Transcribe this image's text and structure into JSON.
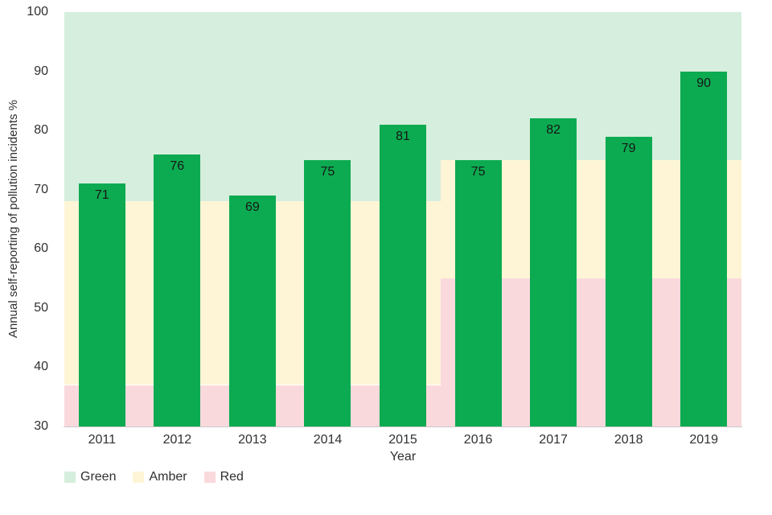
{
  "chart_data": {
    "type": "bar",
    "title": "",
    "xlabel": "Year",
    "ylabel": "Annual self-reporting of pollution incidents %",
    "categories": [
      "2011",
      "2012",
      "2013",
      "2014",
      "2015",
      "2016",
      "2017",
      "2018",
      "2019"
    ],
    "values": [
      71,
      76,
      69,
      75,
      81,
      75,
      82,
      79,
      90
    ],
    "value_labels_shown": true,
    "ylim": [
      30,
      100
    ],
    "yticks": [
      30,
      40,
      50,
      60,
      70,
      80,
      90,
      100
    ],
    "grid": false,
    "bar_color": "#0cab51",
    "legend_position": "bottom-left",
    "legend": [
      {
        "label": "Green",
        "color": "#d6eedd"
      },
      {
        "label": "Amber",
        "color": "#fdf5d6"
      },
      {
        "label": "Red",
        "color": "#fad9dd"
      }
    ],
    "background_bands": [
      {
        "from_category": "2011",
        "to_category": "2015",
        "zones": [
          {
            "name": "Green",
            "min": 68,
            "max": 100
          },
          {
            "name": "Amber",
            "min": 37,
            "max": 68
          },
          {
            "name": "Red",
            "min": 30,
            "max": 37
          }
        ]
      },
      {
        "from_category": "2016",
        "to_category": "2019",
        "zones": [
          {
            "name": "Green",
            "min": 75,
            "max": 100
          },
          {
            "name": "Amber",
            "min": 55,
            "max": 75
          },
          {
            "name": "Red",
            "min": 30,
            "max": 55
          }
        ]
      }
    ]
  }
}
